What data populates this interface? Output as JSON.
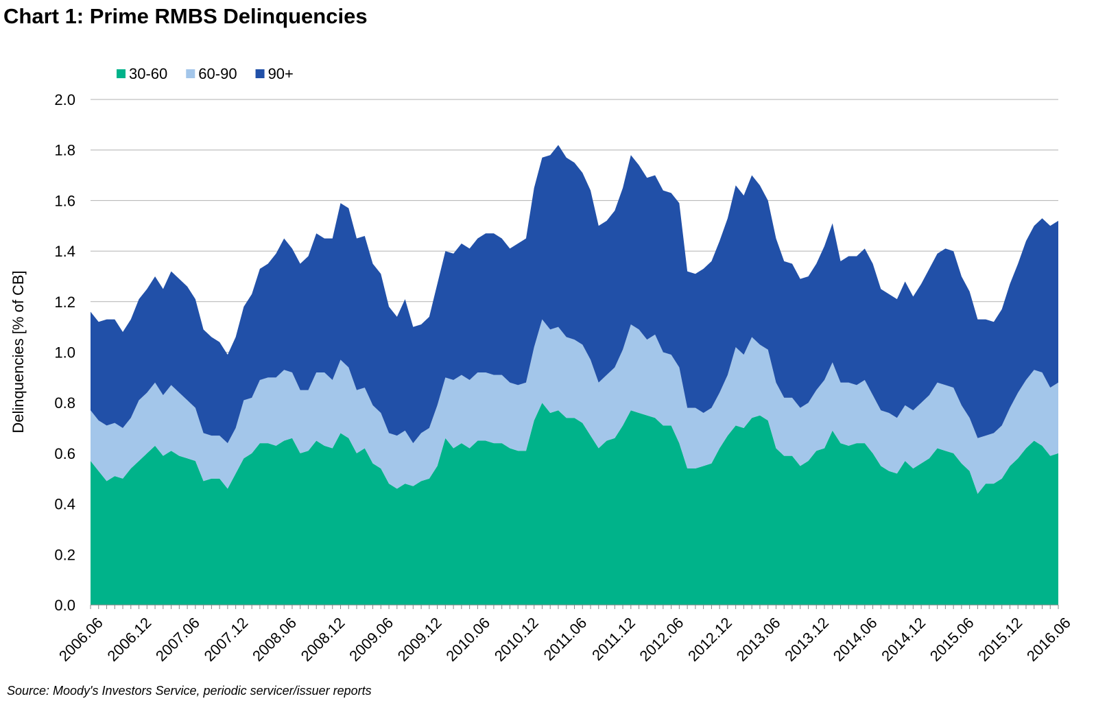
{
  "chart_data": {
    "type": "stacked-area",
    "title": "Chart 1: Prime RMBS Delinquencies",
    "y_label": "Delinquencies [% of CB]",
    "source": "Source: Moody's Investors Service, periodic servicer/issuer reports",
    "categories": [
      "2006.06",
      null,
      null,
      null,
      null,
      null,
      "2006.12",
      null,
      null,
      null,
      null,
      null,
      "2007.06",
      null,
      null,
      null,
      null,
      null,
      "2007.12",
      null,
      null,
      null,
      null,
      null,
      "2008.06",
      null,
      null,
      null,
      null,
      null,
      "2008.12",
      null,
      null,
      null,
      null,
      null,
      "2009.06",
      null,
      null,
      null,
      null,
      null,
      "2009.12",
      null,
      null,
      null,
      null,
      null,
      "2010.06",
      null,
      null,
      null,
      null,
      null,
      "2010.12",
      null,
      null,
      null,
      null,
      null,
      "2011.06",
      null,
      null,
      null,
      null,
      null,
      "2011.12",
      null,
      null,
      null,
      null,
      null,
      "2012.06",
      null,
      null,
      null,
      null,
      null,
      "2012.12",
      null,
      null,
      null,
      null,
      null,
      "2013.06",
      null,
      null,
      null,
      null,
      null,
      "2013.12",
      null,
      null,
      null,
      null,
      null,
      "2014.06",
      null,
      null,
      null,
      null,
      null,
      "2014.12",
      null,
      null,
      null,
      null,
      null,
      "2015.06",
      null,
      null,
      null,
      null,
      null,
      "2015.12",
      null,
      null,
      null,
      null,
      null,
      "2016.06"
    ],
    "series": [
      {
        "name": "30-60",
        "color": "#00b38a",
        "values": [
          0.57,
          0.53,
          0.49,
          0.51,
          0.5,
          0.54,
          0.57,
          0.6,
          0.63,
          0.59,
          0.61,
          0.59,
          0.58,
          0.57,
          0.49,
          0.5,
          0.5,
          0.46,
          0.52,
          0.58,
          0.6,
          0.64,
          0.64,
          0.63,
          0.65,
          0.66,
          0.6,
          0.61,
          0.65,
          0.63,
          0.62,
          0.68,
          0.66,
          0.6,
          0.62,
          0.56,
          0.54,
          0.48,
          0.46,
          0.48,
          0.47,
          0.49,
          0.5,
          0.55,
          0.66,
          0.62,
          0.64,
          0.62,
          0.65,
          0.65,
          0.64,
          0.64,
          0.62,
          0.61,
          0.61,
          0.73,
          0.8,
          0.76,
          0.77,
          0.74,
          0.74,
          0.72,
          0.67,
          0.62,
          0.65,
          0.66,
          0.71,
          0.77,
          0.76,
          0.75,
          0.74,
          0.71,
          0.71,
          0.64,
          0.54,
          0.54,
          0.55,
          0.56,
          0.62,
          0.67,
          0.71,
          0.7,
          0.74,
          0.75,
          0.73,
          0.62,
          0.59,
          0.59,
          0.55,
          0.57,
          0.61,
          0.62,
          0.69,
          0.64,
          0.63,
          0.64,
          0.64,
          0.6,
          0.55,
          0.53,
          0.52,
          0.57,
          0.54,
          0.56,
          0.58,
          0.62,
          0.61,
          0.6,
          0.56,
          0.53,
          0.44,
          0.48,
          0.48,
          0.5,
          0.55,
          0.58,
          0.62,
          0.65,
          0.63,
          0.59,
          0.6
        ]
      },
      {
        "name": "60-90",
        "color": "#a3c6ea",
        "values": [
          0.2,
          0.2,
          0.22,
          0.21,
          0.2,
          0.2,
          0.24,
          0.24,
          0.25,
          0.24,
          0.26,
          0.25,
          0.23,
          0.21,
          0.19,
          0.17,
          0.17,
          0.18,
          0.18,
          0.23,
          0.22,
          0.25,
          0.26,
          0.27,
          0.28,
          0.26,
          0.25,
          0.24,
          0.27,
          0.29,
          0.27,
          0.29,
          0.28,
          0.25,
          0.24,
          0.23,
          0.22,
          0.2,
          0.21,
          0.21,
          0.17,
          0.19,
          0.2,
          0.24,
          0.24,
          0.27,
          0.27,
          0.27,
          0.27,
          0.27,
          0.27,
          0.27,
          0.26,
          0.26,
          0.27,
          0.29,
          0.33,
          0.33,
          0.33,
          0.32,
          0.31,
          0.31,
          0.3,
          0.26,
          0.26,
          0.28,
          0.3,
          0.34,
          0.33,
          0.3,
          0.33,
          0.29,
          0.28,
          0.3,
          0.24,
          0.24,
          0.21,
          0.22,
          0.22,
          0.24,
          0.31,
          0.29,
          0.32,
          0.28,
          0.28,
          0.26,
          0.23,
          0.23,
          0.23,
          0.23,
          0.24,
          0.27,
          0.27,
          0.24,
          0.25,
          0.23,
          0.25,
          0.23,
          0.22,
          0.23,
          0.22,
          0.22,
          0.23,
          0.24,
          0.25,
          0.26,
          0.26,
          0.26,
          0.23,
          0.21,
          0.22,
          0.19,
          0.2,
          0.21,
          0.23,
          0.26,
          0.27,
          0.28,
          0.29,
          0.27,
          0.28
        ]
      },
      {
        "name": "90+",
        "color": "#2150a8",
        "values": [
          0.39,
          0.39,
          0.42,
          0.41,
          0.38,
          0.39,
          0.4,
          0.41,
          0.42,
          0.42,
          0.45,
          0.45,
          0.45,
          0.43,
          0.41,
          0.39,
          0.37,
          0.35,
          0.36,
          0.37,
          0.41,
          0.44,
          0.45,
          0.49,
          0.52,
          0.49,
          0.5,
          0.53,
          0.55,
          0.53,
          0.56,
          0.62,
          0.63,
          0.6,
          0.6,
          0.56,
          0.55,
          0.5,
          0.47,
          0.52,
          0.46,
          0.43,
          0.44,
          0.48,
          0.5,
          0.5,
          0.52,
          0.52,
          0.53,
          0.55,
          0.56,
          0.54,
          0.53,
          0.56,
          0.57,
          0.63,
          0.64,
          0.69,
          0.72,
          0.71,
          0.7,
          0.68,
          0.67,
          0.62,
          0.61,
          0.62,
          0.64,
          0.67,
          0.65,
          0.64,
          0.63,
          0.64,
          0.64,
          0.65,
          0.54,
          0.53,
          0.57,
          0.58,
          0.6,
          0.62,
          0.64,
          0.63,
          0.64,
          0.63,
          0.59,
          0.57,
          0.54,
          0.53,
          0.51,
          0.5,
          0.5,
          0.53,
          0.55,
          0.48,
          0.5,
          0.51,
          0.52,
          0.52,
          0.48,
          0.47,
          0.47,
          0.49,
          0.45,
          0.47,
          0.5,
          0.51,
          0.54,
          0.54,
          0.51,
          0.5,
          0.47,
          0.46,
          0.44,
          0.46,
          0.49,
          0.51,
          0.55,
          0.57,
          0.61,
          0.64,
          0.64
        ]
      }
    ],
    "ylim": [
      0,
      2
    ],
    "yticks": [
      {
        "value": 0,
        "label": "0.0"
      },
      0.2,
      0.4,
      0.6,
      0.8,
      {
        "value": 1,
        "label": "1.0"
      },
      1.2,
      1.4,
      1.6,
      1.8,
      {
        "value": 2,
        "label": "2.0"
      }
    ],
    "grid": true,
    "legend": "top"
  }
}
